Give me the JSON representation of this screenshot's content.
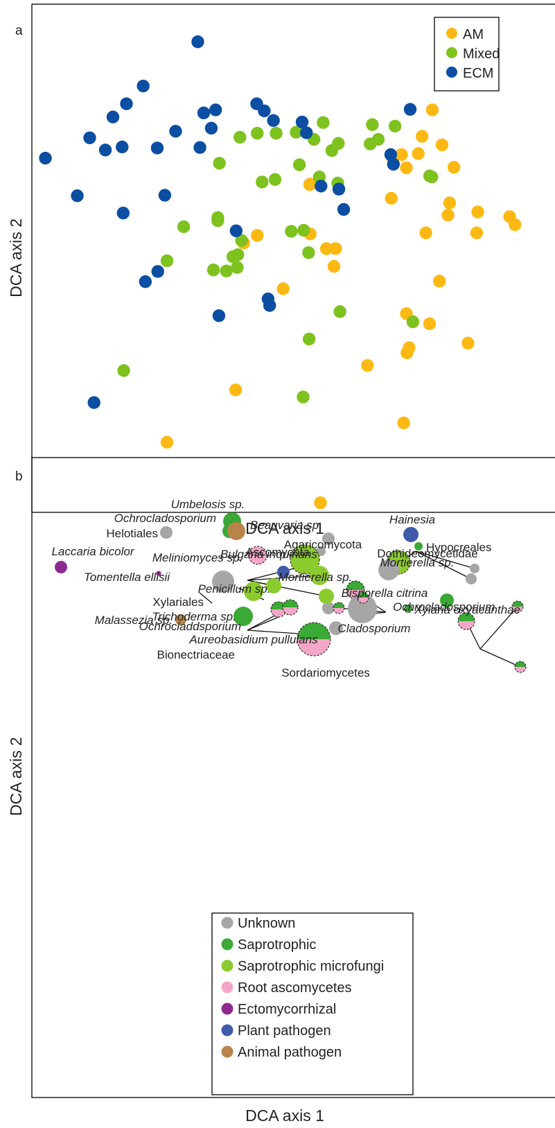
{
  "figure": {
    "panel_a_label": "a",
    "panel_b_label": "b"
  },
  "colors": {
    "AM": "#FDB913",
    "Mixed": "#7DC21E",
    "ECM": "#0B4EA2",
    "Unknown": "#A6A6A6",
    "Saprotrophic": "#3AA935",
    "Saprotrophic microfungi": "#8CCB2E",
    "Root ascomycetes": "#F4A6C8",
    "Ectomycorrhizal": "#8E2A8F",
    "Plant pathogen": "#3F5BA9",
    "Animal pathogen": "#B8844A"
  },
  "chart_data": [
    {
      "type": "scatter",
      "panel": "a",
      "xlabel": "DCA axis 1",
      "ylabel": "DCA axis 2",
      "xlim": [
        0,
        100
      ],
      "ylim": [
        0,
        100
      ],
      "legend_position": "top-right",
      "series": [
        {
          "name": "AM",
          "points": [
            [
              74.1,
              79.2
            ],
            [
              72.2,
              74.0
            ],
            [
              75.9,
              72.3
            ],
            [
              78.1,
              67.9
            ],
            [
              71.5,
              70.6
            ],
            [
              68.4,
              70.4
            ],
            [
              69.3,
              67.8
            ],
            [
              66.8,
              69.5
            ],
            [
              51.4,
              64.5
            ],
            [
              51.5,
              64.6
            ],
            [
              66.5,
              61.8
            ],
            [
              77.3,
              60.9
            ],
            [
              77.0,
              58.5
            ],
            [
              82.5,
              59.1
            ],
            [
              88.4,
              58.2
            ],
            [
              82.3,
              55.0
            ],
            [
              89.4,
              56.6
            ],
            [
              51.5,
              54.8
            ],
            [
              41.7,
              54.5
            ],
            [
              39.2,
              53.0
            ],
            [
              72.9,
              55.0
            ],
            [
              56.2,
              51.9
            ],
            [
              54.5,
              51.9
            ],
            [
              55.9,
              48.4
            ],
            [
              75.4,
              45.5
            ],
            [
              46.5,
              44.0
            ],
            [
              69.3,
              39.1
            ],
            [
              73.6,
              37.1
            ],
            [
              80.7,
              33.3
            ],
            [
              69.4,
              31.4
            ],
            [
              69.8,
              32.4
            ],
            [
              62.1,
              28.9
            ],
            [
              37.7,
              24.1
            ],
            [
              68.8,
              17.6
            ],
            [
              25.0,
              13.8
            ],
            [
              53.4,
              1.9
            ]
          ]
        },
        {
          "name": "Mixed",
          "points": [
            [
              53.9,
              76.7
            ],
            [
              63.0,
              76.3
            ],
            [
              67.2,
              76.0
            ],
            [
              64.1,
              73.4
            ],
            [
              45.2,
              74.6
            ],
            [
              41.7,
              74.6
            ],
            [
              38.5,
              73.8
            ],
            [
              48.9,
              74.8
            ],
            [
              52.2,
              73.4
            ],
            [
              62.6,
              72.5
            ],
            [
              56.7,
              72.6
            ],
            [
              55.5,
              71.2
            ],
            [
              34.7,
              68.7
            ],
            [
              49.5,
              68.4
            ],
            [
              73.6,
              66.2
            ],
            [
              74.0,
              66.0
            ],
            [
              53.2,
              66.0
            ],
            [
              56.6,
              64.8
            ],
            [
              45.0,
              65.5
            ],
            [
              42.6,
              65.0
            ],
            [
              28.1,
              56.2
            ],
            [
              34.4,
              57.4
            ],
            [
              34.4,
              58.0
            ],
            [
              48.0,
              55.3
            ],
            [
              50.3,
              55.5
            ],
            [
              38.8,
              53.5
            ],
            [
              37.2,
              50.3
            ],
            [
              38.1,
              50.7
            ],
            [
              51.2,
              51.1
            ],
            [
              25.0,
              49.5
            ],
            [
              33.6,
              47.7
            ],
            [
              36.0,
              47.5
            ],
            [
              38.0,
              48.2
            ],
            [
              57.0,
              39.5
            ],
            [
              70.5,
              37.5
            ],
            [
              51.3,
              34.1
            ],
            [
              17.0,
              27.9
            ],
            [
              50.2,
              22.7
            ]
          ]
        },
        {
          "name": "ECM",
          "points": [
            [
              30.7,
              92.6
            ],
            [
              20.6,
              83.9
            ],
            [
              17.5,
              80.4
            ],
            [
              15.0,
              77.8
            ],
            [
              34.0,
              79.2
            ],
            [
              31.8,
              78.6
            ],
            [
              26.6,
              75.0
            ],
            [
              33.2,
              75.6
            ],
            [
              41.6,
              80.4
            ],
            [
              43.0,
              79.0
            ],
            [
              44.7,
              77.1
            ],
            [
              50.0,
              76.8
            ],
            [
              50.8,
              74.7
            ],
            [
              70.0,
              79.3
            ],
            [
              10.7,
              73.7
            ],
            [
              13.6,
              71.3
            ],
            [
              16.7,
              71.9
            ],
            [
              23.2,
              71.7
            ],
            [
              31.1,
              71.8
            ],
            [
              2.5,
              69.7
            ],
            [
              66.4,
              70.4
            ],
            [
              66.9,
              68.5
            ],
            [
              53.5,
              64.2
            ],
            [
              56.8,
              63.6
            ],
            [
              8.4,
              62.3
            ],
            [
              24.6,
              62.4
            ],
            [
              57.7,
              59.6
            ],
            [
              16.9,
              58.9
            ],
            [
              37.8,
              55.4
            ],
            [
              23.3,
              47.4
            ],
            [
              21.0,
              45.4
            ],
            [
              43.7,
              42.0
            ],
            [
              44.0,
              40.7
            ],
            [
              34.6,
              38.7
            ],
            [
              11.5,
              21.6
            ]
          ]
        }
      ]
    },
    {
      "type": "scatter",
      "panel": "b",
      "xlabel": "DCA axis 1",
      "ylabel": "DCA axis 2",
      "legend_position": "bottom-center",
      "categories": [
        "Unknown",
        "Saprotrophic",
        "Saprotrophic microfungi",
        "Root ascomycetes",
        "Ectomycorrhizal",
        "Plant pathogen",
        "Animal pathogen"
      ],
      "points": [
        {
          "label": "Ascomycota",
          "italic": false,
          "category": "Unknown",
          "size": 1
        },
        {
          "label": "Dothideomycetidae",
          "italic": false,
          "category": "Unknown",
          "size": 1
        },
        {
          "label": "Laccaria bicolor",
          "italic": true,
          "category": "Ectomycorrhizal",
          "size": 1
        },
        {
          "label": "Bulgaria inquinans",
          "italic": true,
          "category": "Plant pathogen",
          "size": 1
        },
        {
          "label": "Bisporella citrina",
          "italic": true,
          "category": "Saprotrophic",
          "size": 1
        },
        {
          "label": "Umbelosis sp.",
          "italic": true,
          "category": "Saprotrophic",
          "size": 2
        },
        {
          "label": "Ochrocladosporium",
          "italic": true,
          "category": "Saprotrophic",
          "size": 1
        },
        {
          "label": "Beauvaria sp.",
          "italic": true,
          "category": "Animal pathogen",
          "size": 2
        },
        {
          "label": "Helotiales",
          "italic": false,
          "category": "Unknown",
          "size": 1
        },
        {
          "label": "Hainesia",
          "italic": true,
          "category": "Plant pathogen",
          "size": 1
        },
        {
          "label": "Agaricomycota",
          "italic": false,
          "category": "Unknown",
          "size": 1
        },
        {
          "label": "Meliniomyces sp.",
          "italic": true,
          "category": "Root ascomycetes",
          "size": 2
        },
        {
          "label": "Tomentella ellisii",
          "italic": true,
          "category": "Ectomycorrhizal",
          "size": 0
        },
        {
          "label": "Mortierella sp.",
          "italic": true,
          "category": "Saprotrophic microfungi",
          "size": 3
        },
        {
          "label": "Mortierella sp.",
          "italic": true,
          "category": "Saprotrophic microfungi",
          "size": 2
        },
        {
          "label": "Penicillum sp.",
          "italic": true,
          "category": "Saprotrophic microfungi",
          "size": 2
        },
        {
          "label": "Xylariales",
          "italic": false,
          "category": "Unknown",
          "size": 2
        },
        {
          "label": "Trichoderma sp.",
          "italic": true,
          "category": "Saprotrophic microfungi",
          "size": 2
        },
        {
          "label": "Ochrocladosporium",
          "italic": true,
          "category": "Saprotrophic",
          "size": 1
        },
        {
          "label": "Ochrocladdsporium",
          "italic": true,
          "category": "Saprotrophic",
          "size": 1
        },
        {
          "label": "Cladosporium",
          "italic": true,
          "category": "Unknown",
          "size": 3
        },
        {
          "label": "Xylaria oxyacanthae",
          "italic": true,
          "category": "Saprotrophic",
          "size": 0
        },
        {
          "label": "Aureobasidium pullulans",
          "italic": true,
          "category": "Unknown",
          "size": 1
        },
        {
          "label": "Bionectriaceae",
          "italic": false,
          "category": "Saprotrophic",
          "size": 2
        },
        {
          "label": "Sordariomycetes",
          "italic": false,
          "category": "Unknown",
          "size": 1
        },
        {
          "label": "Hypocreales",
          "italic": false,
          "category": "Saprotrophic",
          "size": 0
        },
        {
          "label": "Malassezia sp.",
          "italic": true,
          "category": "Animal pathogen",
          "size": 1
        }
      ]
    }
  ]
}
